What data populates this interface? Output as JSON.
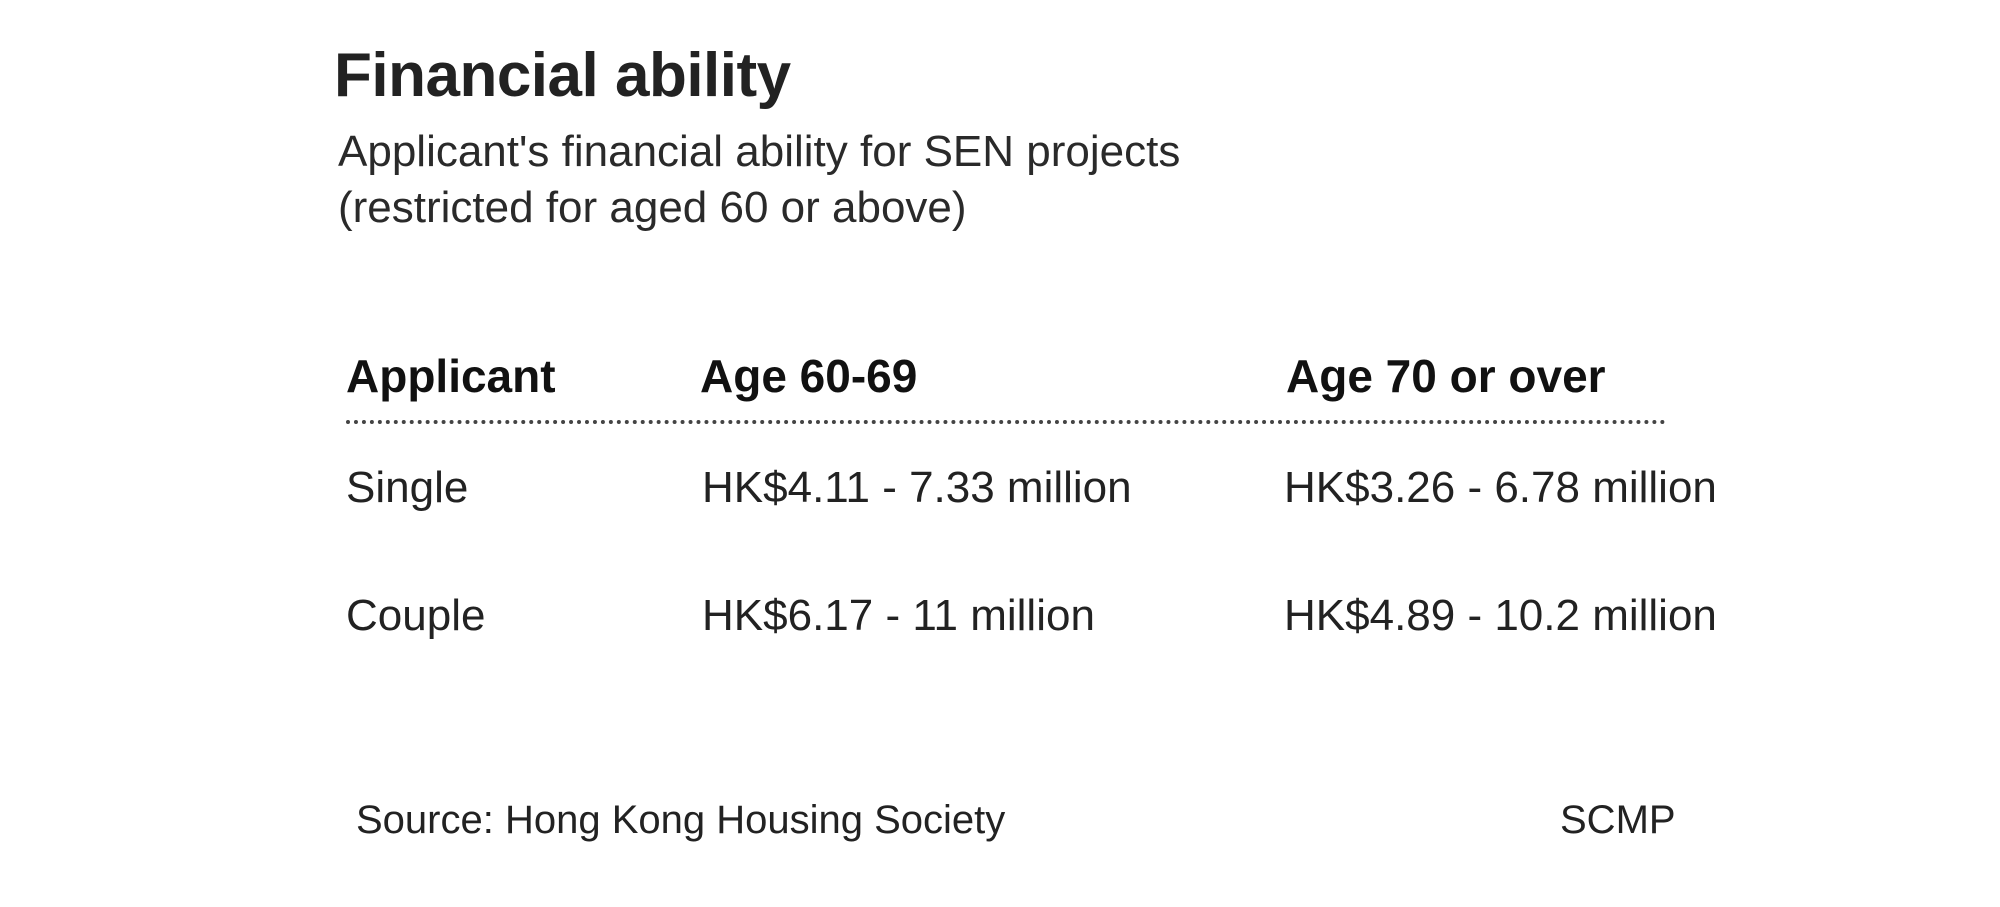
{
  "header": {
    "title": "Financial ability",
    "subtitle_line1": "Applicant's financial ability for SEN projects",
    "subtitle_line2": "(restricted for aged 60 or above)"
  },
  "table": {
    "columns": [
      "Applicant",
      "Age 60-69",
      "Age 70 or over"
    ],
    "rows": [
      {
        "applicant": "Single",
        "age_60_69": "HK$4.11 - 7.33 million",
        "age_70_over": "HK$3.26 - 6.78 million"
      },
      {
        "applicant": "Couple",
        "age_60_69": "HK$6.17 - 11 million",
        "age_70_over": "HK$4.89 - 10.2 million"
      }
    ]
  },
  "footer": {
    "source": "Source: Hong Kong Housing Society",
    "credit": "SCMP"
  }
}
